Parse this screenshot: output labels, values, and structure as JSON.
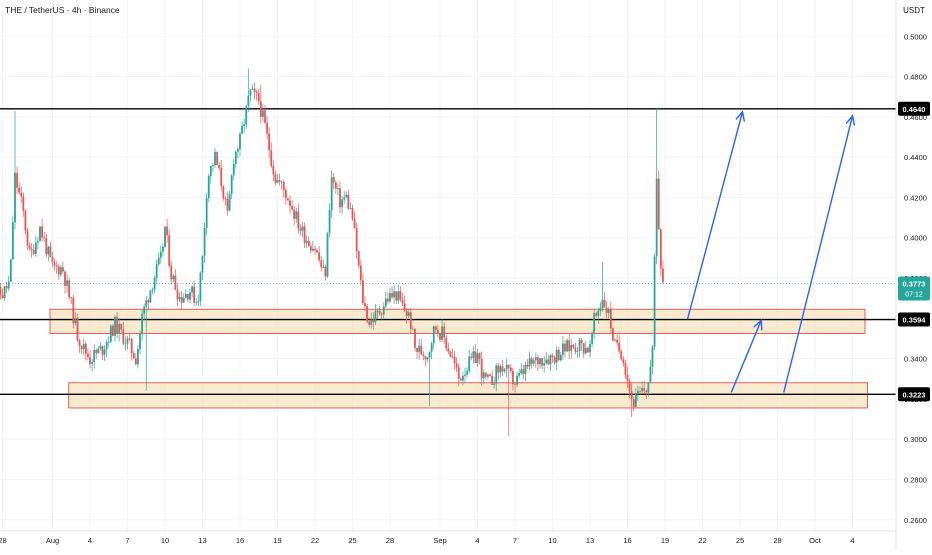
{
  "header": {
    "title": "THE / TetherUS · 4h · Binance",
    "currency": "USDT"
  },
  "colors": {
    "up": "#26a69a",
    "down": "#ef5350",
    "zone_fill": "#f5deb3",
    "zone_stroke": "#e53935",
    "arrow": "#2962ff",
    "last_price_bg": "#26a69a",
    "level_label_bg": "#000000",
    "grid": "#f0f3fa",
    "axis_text": "#131722"
  },
  "chart_data": {
    "type": "candlestick",
    "title": "THE / TetherUS · 4h · Binance",
    "ylabel": "USDT",
    "ylim": [
      0.245,
      0.518
    ],
    "yticks": [
      0.26,
      0.28,
      0.3,
      0.32,
      0.34,
      0.36,
      0.38,
      0.4,
      0.42,
      0.44,
      0.46,
      0.48,
      0.5
    ],
    "ytick_labels": [
      "0.2600",
      "0.2800",
      "0.3000",
      "0.3200",
      "0.3400",
      "0.3600",
      "0.3800",
      "0.4000",
      "0.4200",
      "0.4400",
      "0.4600",
      "0.4800",
      "0.5000"
    ],
    "xlim_days": [
      0,
      87.5
    ],
    "x_ticks": [
      {
        "day": 1,
        "label": "28"
      },
      {
        "day": 5,
        "label": "Aug"
      },
      {
        "day": 8,
        "label": "4"
      },
      {
        "day": 11,
        "label": "7"
      },
      {
        "day": 14,
        "label": "10"
      },
      {
        "day": 17,
        "label": "13"
      },
      {
        "day": 20,
        "label": "16"
      },
      {
        "day": 23,
        "label": "19"
      },
      {
        "day": 26,
        "label": "22"
      },
      {
        "day": 29,
        "label": "25"
      },
      {
        "day": 32,
        "label": "28"
      },
      {
        "day": 36,
        "label": "Sep"
      },
      {
        "day": 39,
        "label": "4"
      },
      {
        "day": 42,
        "label": "7"
      },
      {
        "day": 45,
        "label": "10"
      },
      {
        "day": 48,
        "label": "13"
      },
      {
        "day": 51,
        "label": "16"
      },
      {
        "day": 54,
        "label": "19"
      },
      {
        "day": 57,
        "label": "22"
      },
      {
        "day": 60,
        "label": "25"
      },
      {
        "day": 63,
        "label": "28"
      },
      {
        "day": 66,
        "label": "Oct"
      },
      {
        "day": 69,
        "label": "4"
      }
    ],
    "close_anchors": [
      [
        0,
        0.357
      ],
      [
        0.5,
        0.372
      ],
      [
        1.0,
        0.372
      ],
      [
        1.6,
        0.378
      ],
      [
        2.0,
        0.43
      ],
      [
        2.6,
        0.415
      ],
      [
        3.2,
        0.39
      ],
      [
        4.0,
        0.405
      ],
      [
        5.0,
        0.385
      ],
      [
        5.8,
        0.385
      ],
      [
        6.3,
        0.372
      ],
      [
        7.0,
        0.352
      ],
      [
        7.5,
        0.345
      ],
      [
        8.0,
        0.34
      ],
      [
        9.0,
        0.345
      ],
      [
        10.0,
        0.357
      ],
      [
        11.0,
        0.348
      ],
      [
        11.7,
        0.34
      ],
      [
        12.2,
        0.362
      ],
      [
        13.0,
        0.378
      ],
      [
        13.7,
        0.39
      ],
      [
        14.0,
        0.405
      ],
      [
        14.5,
        0.382
      ],
      [
        15.2,
        0.37
      ],
      [
        16.0,
        0.374
      ],
      [
        16.6,
        0.368
      ],
      [
        17.0,
        0.39
      ],
      [
        17.4,
        0.43
      ],
      [
        18.0,
        0.44
      ],
      [
        18.6,
        0.425
      ],
      [
        19.0,
        0.41
      ],
      [
        19.5,
        0.44
      ],
      [
        20.0,
        0.448
      ],
      [
        20.8,
        0.472
      ],
      [
        21.5,
        0.468
      ],
      [
        22.0,
        0.455
      ],
      [
        22.8,
        0.43
      ],
      [
        23.3,
        0.426
      ],
      [
        24.0,
        0.418
      ],
      [
        24.8,
        0.405
      ],
      [
        25.5,
        0.398
      ],
      [
        26.0,
        0.395
      ],
      [
        26.8,
        0.38
      ],
      [
        27.3,
        0.43
      ],
      [
        28.0,
        0.418
      ],
      [
        28.5,
        0.42
      ],
      [
        29.0,
        0.41
      ],
      [
        29.8,
        0.37
      ],
      [
        30.3,
        0.358
      ],
      [
        31.0,
        0.362
      ],
      [
        31.8,
        0.37
      ],
      [
        32.5,
        0.372
      ],
      [
        33.0,
        0.366
      ],
      [
        33.6,
        0.36
      ],
      [
        34.0,
        0.345
      ],
      [
        35.0,
        0.342
      ],
      [
        35.6,
        0.356
      ],
      [
        36.2,
        0.352
      ],
      [
        37.0,
        0.34
      ],
      [
        37.5,
        0.33
      ],
      [
        38.0,
        0.335
      ],
      [
        39.0,
        0.342
      ],
      [
        39.5,
        0.33
      ],
      [
        40.0,
        0.328
      ],
      [
        40.6,
        0.334
      ],
      [
        41.0,
        0.336
      ],
      [
        42.0,
        0.328
      ],
      [
        43.0,
        0.336
      ],
      [
        44.0,
        0.34
      ],
      [
        45.0,
        0.341
      ],
      [
        46.0,
        0.345
      ],
      [
        47.0,
        0.347
      ],
      [
        48.0,
        0.345
      ],
      [
        48.3,
        0.358
      ],
      [
        49.0,
        0.37
      ],
      [
        49.5,
        0.362
      ],
      [
        50.0,
        0.346
      ],
      [
        50.6,
        0.343
      ],
      [
        51.0,
        0.33
      ],
      [
        51.4,
        0.318
      ],
      [
        52.0,
        0.322
      ],
      [
        52.6,
        0.326
      ],
      [
        53.0,
        0.342
      ],
      [
        53.3,
        0.435
      ],
      [
        53.6,
        0.392
      ],
      [
        53.9,
        0.377
      ]
    ],
    "wick_spikes": [
      {
        "day": 2.0,
        "high": 0.463
      },
      {
        "day": 12.5,
        "low": 0.324
      },
      {
        "day": 20.6,
        "high": 0.484
      },
      {
        "day": 21.6,
        "high": 0.476
      },
      {
        "day": 35.2,
        "low": 0.3165
      },
      {
        "day": 41.5,
        "low": 0.3015
      },
      {
        "day": 49.0,
        "high": 0.388
      },
      {
        "day": 51.4,
        "low": 0.311
      },
      {
        "day": 53.3,
        "high": 0.4645
      }
    ],
    "last_price": {
      "value": 0.3773,
      "label": "0.3773",
      "countdown": "07:12"
    },
    "levels": [
      {
        "value": 0.464,
        "label": "0.4640"
      },
      {
        "value": 0.3594,
        "label": "0.3594"
      },
      {
        "value": 0.3223,
        "label": "0.3223"
      }
    ],
    "zones": [
      {
        "x_from_day": 4.8,
        "x_to_day": 70.0,
        "y_low": 0.3525,
        "y_high": 0.3645
      },
      {
        "x_from_day": 6.3,
        "x_to_day": 70.2,
        "y_low": 0.3155,
        "y_high": 0.328
      }
    ],
    "arrows": [
      {
        "from": [
          55.8,
          0.3595
        ],
        "to": [
          60.2,
          0.4625
        ]
      },
      {
        "from": [
          59.3,
          0.3232
        ],
        "to": [
          61.7,
          0.359
        ]
      },
      {
        "from": [
          63.5,
          0.3232
        ],
        "to": [
          69.0,
          0.4605
        ]
      }
    ]
  }
}
